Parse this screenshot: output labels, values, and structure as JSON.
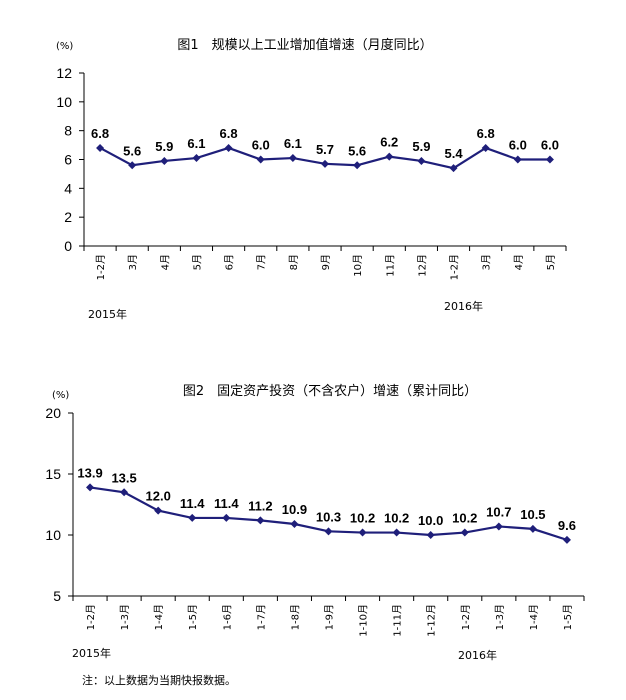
{
  "chart_data": [
    {
      "type": "line",
      "title": "图1　规模以上工业增加值增速（月度同比）",
      "unit": "(%)",
      "ylim": [
        0,
        12
      ],
      "yticks": [
        "0",
        "2",
        "4",
        "6",
        "8",
        "10",
        "12"
      ],
      "categories": [
        "1-2月",
        "3月",
        "4月",
        "5月",
        "6月",
        "7月",
        "8月",
        "9月",
        "10月",
        "11月",
        "12月",
        "1-2月",
        "3月",
        "4月",
        "5月"
      ],
      "values": [
        6.8,
        5.6,
        5.9,
        6.1,
        6.8,
        6.0,
        6.1,
        5.7,
        5.6,
        6.2,
        5.9,
        5.4,
        6.8,
        6.0,
        6.0
      ],
      "labels": [
        "6.8",
        "5.6",
        "5.9",
        "6.1",
        "6.8",
        "6.0",
        "6.1",
        "5.7",
        "5.6",
        "6.2",
        "5.9",
        "5.4",
        "6.8",
        "6.0",
        "6.0"
      ],
      "year_labels": [
        "2015年",
        "2016年"
      ],
      "line_color": "#1f1f7a",
      "grid": false
    },
    {
      "type": "line",
      "title": "图2　固定资产投资（不含农户）增速（累计同比）",
      "unit": "(%)",
      "ylim": [
        5,
        20
      ],
      "yticks": [
        "5",
        "10",
        "15",
        "20"
      ],
      "categories": [
        "1-2月",
        "1-3月",
        "1-4月",
        "1-5月",
        "1-6月",
        "1-7月",
        "1-8月",
        "1-9月",
        "1-10月",
        "1-11月",
        "1-12月",
        "1-2月",
        "1-3月",
        "1-4月",
        "1-5月"
      ],
      "values": [
        13.9,
        13.5,
        12.0,
        11.4,
        11.4,
        11.2,
        10.9,
        10.3,
        10.2,
        10.2,
        10.0,
        10.2,
        10.7,
        10.5,
        9.6
      ],
      "labels": [
        "13.9",
        "13.5",
        "12.0",
        "11.4",
        "11.4",
        "11.2",
        "10.9",
        "10.3",
        "10.2",
        "10.2",
        "10.0",
        "10.2",
        "10.7",
        "10.5",
        "9.6"
      ],
      "year_labels": [
        "2015年",
        "2016年"
      ],
      "line_color": "#1f1f7a",
      "grid": false
    }
  ],
  "footnote": "注：以上数据为当期快报数据。"
}
